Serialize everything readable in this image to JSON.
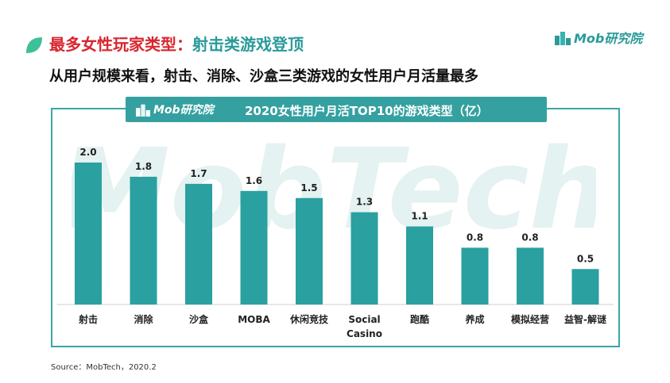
{
  "header": {
    "title_main": "最多女性玩家类型：",
    "title_accent": "射击类游戏登顶",
    "subtitle": "从用户规模来看，射击、消除、沙盒三类游戏的女性用户月活量最多",
    "brand": "Mob研究院"
  },
  "colors": {
    "accent": "#2a9a9a",
    "bar": "#2aa0a0",
    "title_red": "#d8262f"
  },
  "watermark_text": "MobTech",
  "chart_data": {
    "type": "bar",
    "title": "2020女性用户月活TOP10的游戏类型（亿）",
    "categories": [
      "射击",
      "消除",
      "沙盒",
      "MOBA",
      "休闲竞技",
      "Social Casino",
      "跑酷",
      "养成",
      "模拟经营",
      "益智-解谜"
    ],
    "values": [
      2.0,
      1.8,
      1.7,
      1.6,
      1.5,
      1.3,
      1.1,
      0.8,
      0.8,
      0.5
    ],
    "value_labels": [
      "2.0",
      "1.8",
      "1.7",
      "1.6",
      "1.5",
      "1.3",
      "1.1",
      "0.8",
      "0.8",
      "0.5"
    ],
    "xlabel": "",
    "ylabel": "",
    "ylim": [
      0,
      2.0
    ],
    "grid": false,
    "legend": "none"
  },
  "footer": {
    "source": "Source：MobTech，2020.2"
  }
}
